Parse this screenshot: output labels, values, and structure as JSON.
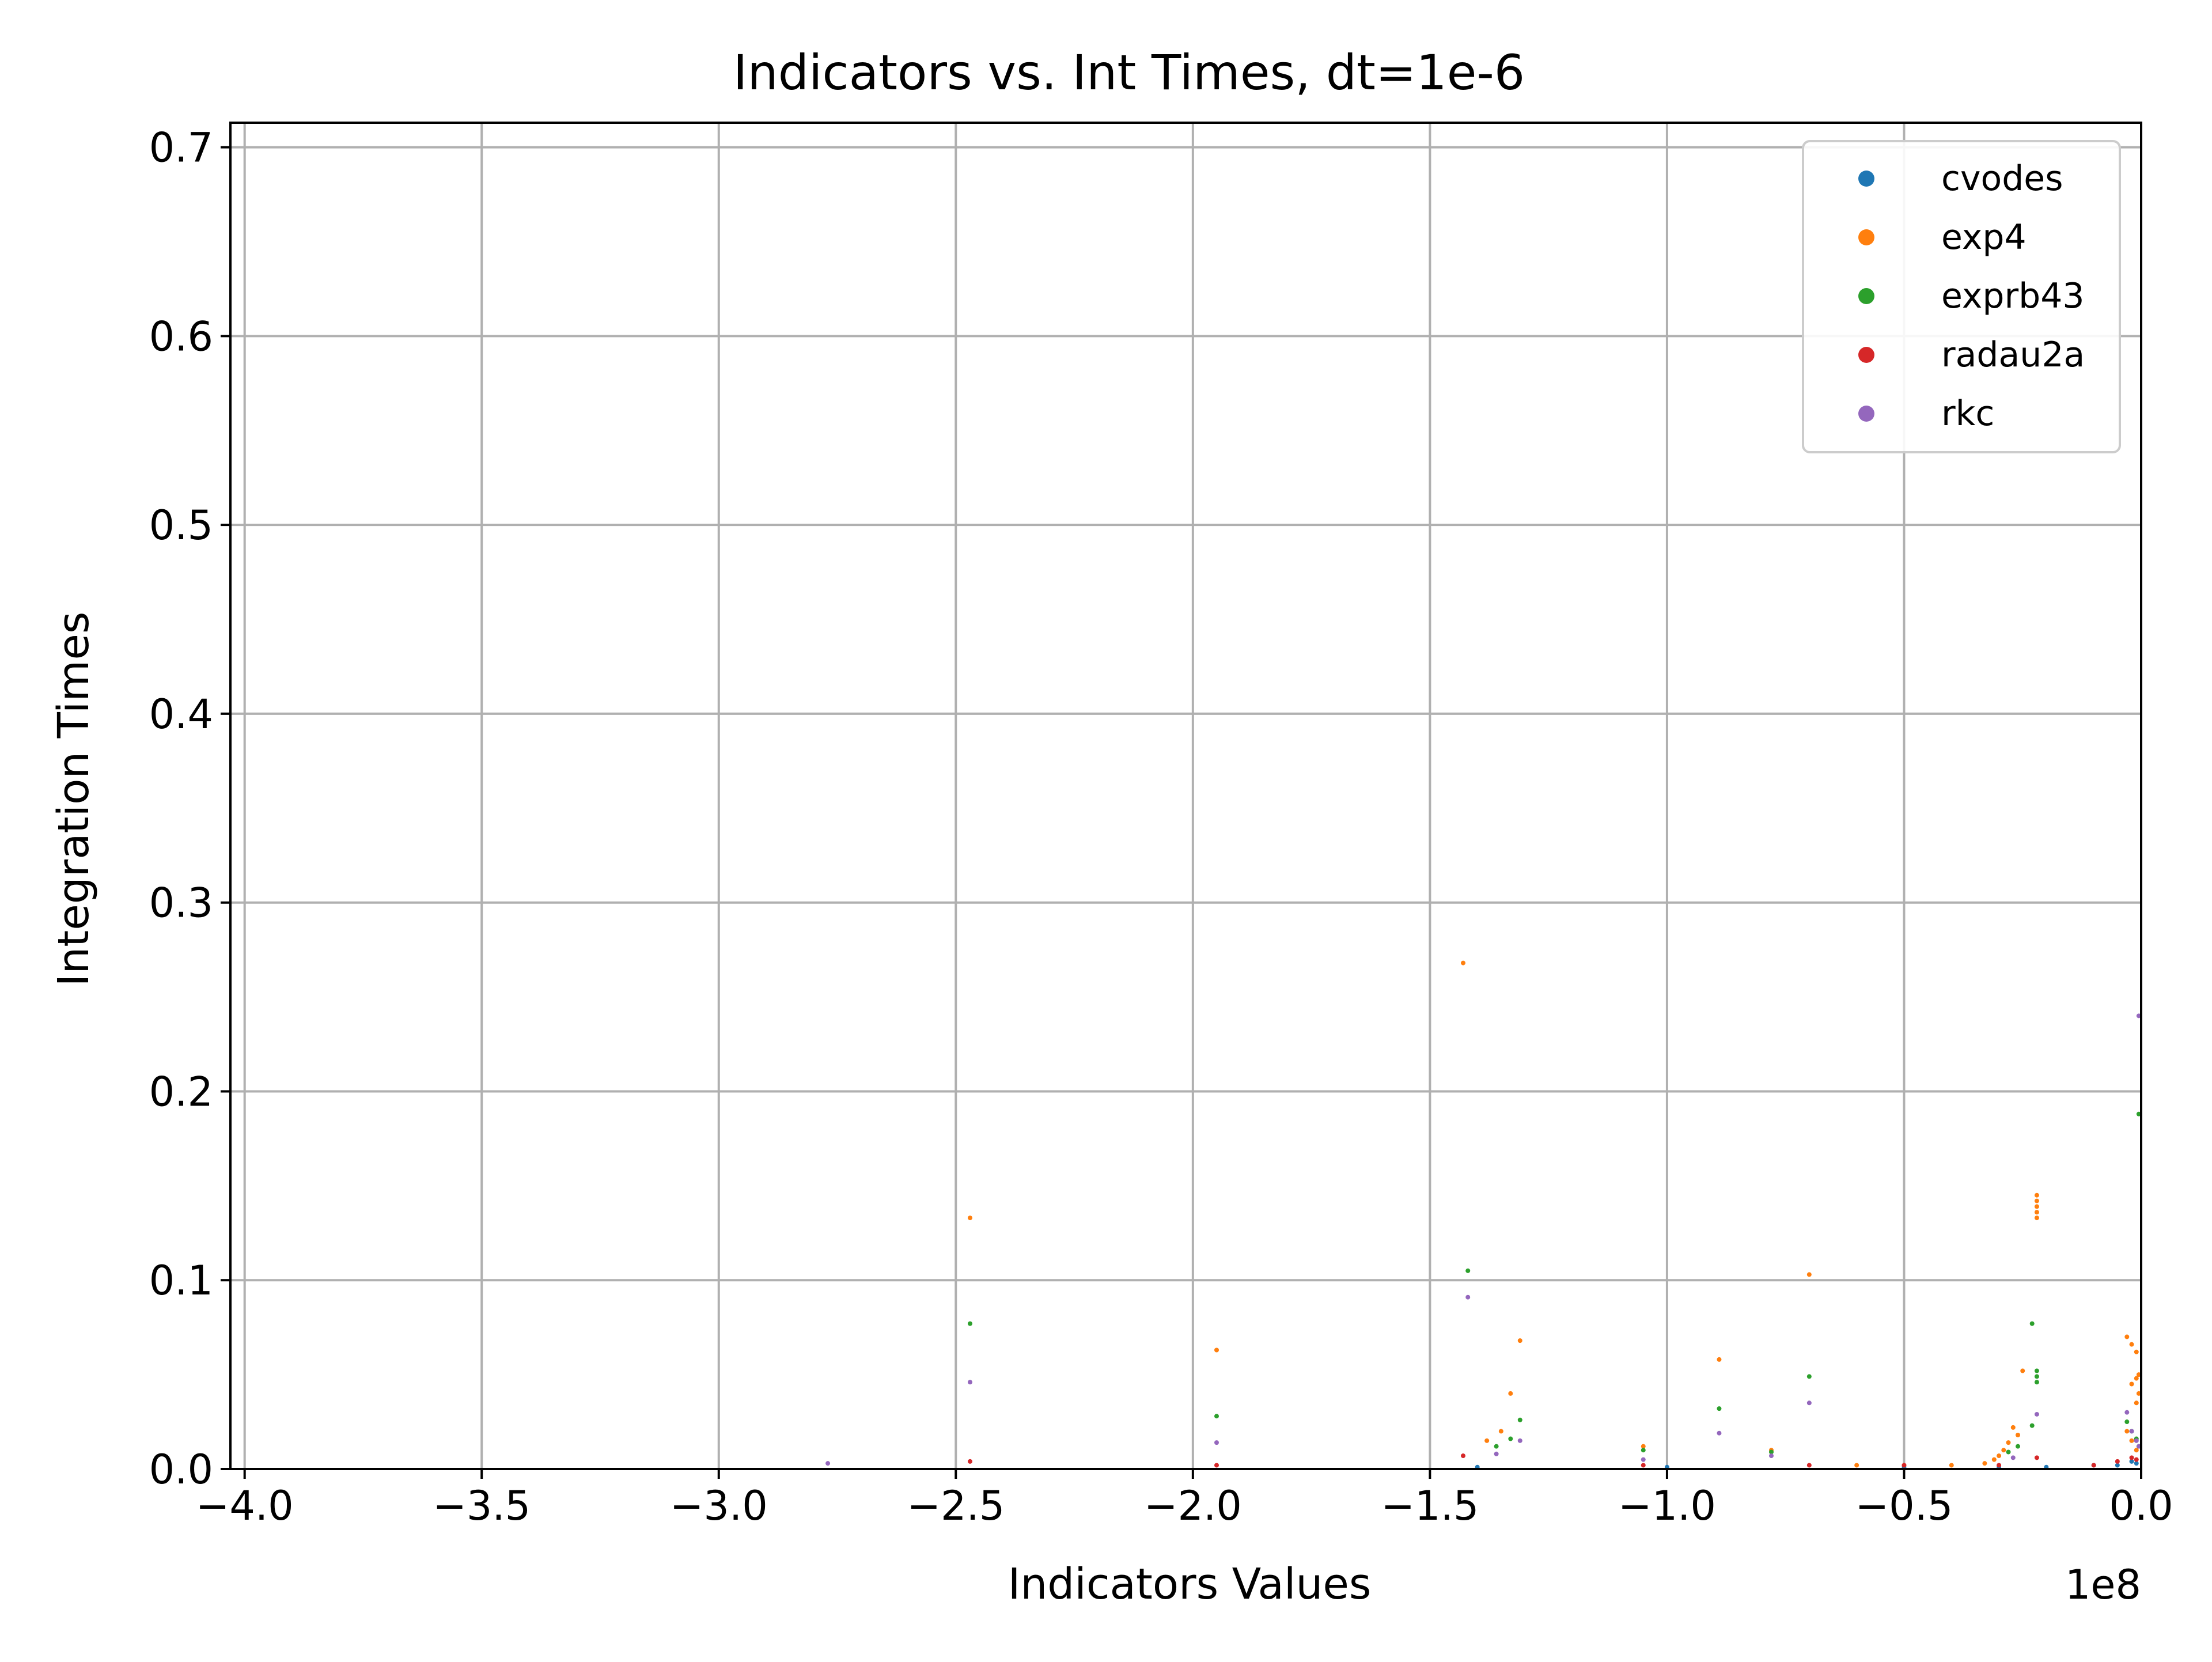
{
  "chart_data": {
    "type": "scatter",
    "title": "Indicators vs. Int Times, dt=1e-6",
    "xlabel": "Indicators Values",
    "ylabel": "Integration Times",
    "x_offset_label": "1e8",
    "xlim": [
      -4.03,
      0.0
    ],
    "ylim": [
      0.0,
      0.713
    ],
    "x_ticks": [
      -4.0,
      -3.5,
      -3.0,
      -2.5,
      -2.0,
      -1.5,
      -1.0,
      -0.5,
      0.0
    ],
    "x_tick_labels": [
      "−4.0",
      "−3.5",
      "−3.0",
      "−2.5",
      "−2.0",
      "−1.5",
      "−1.0",
      "−0.5",
      "0.0"
    ],
    "y_ticks": [
      0.0,
      0.1,
      0.2,
      0.3,
      0.4,
      0.5,
      0.6,
      0.7
    ],
    "y_tick_labels": [
      "0.0",
      "0.1",
      "0.2",
      "0.3",
      "0.4",
      "0.5",
      "0.6",
      "0.7"
    ],
    "grid": true,
    "legend_position": "top-right",
    "series": [
      {
        "name": "cvodes",
        "color": "#1f77b4",
        "points": [
          [
            -0.01,
            0.003
          ],
          [
            -0.02,
            0.004
          ],
          [
            -0.05,
            0.002
          ],
          [
            -0.1,
            0.002
          ],
          [
            -0.2,
            0.001
          ],
          [
            -0.3,
            0.001
          ],
          [
            -0.5,
            0.001
          ],
          [
            -1.0,
            0.001
          ],
          [
            -1.4,
            0.001
          ]
        ]
      },
      {
        "name": "exp4",
        "color": "#ff7f0e",
        "points": [
          [
            -1.43,
            0.268
          ],
          [
            -2.47,
            0.133
          ],
          [
            -1.95,
            0.063
          ],
          [
            -1.31,
            0.068
          ],
          [
            -0.7,
            0.103
          ],
          [
            -0.89,
            0.058
          ],
          [
            -0.25,
            0.052
          ],
          [
            -0.22,
            0.145
          ],
          [
            -0.22,
            0.142
          ],
          [
            -0.22,
            0.139
          ],
          [
            -0.22,
            0.136
          ],
          [
            -0.22,
            0.133
          ],
          [
            -0.03,
            0.07
          ],
          [
            -0.02,
            0.066
          ],
          [
            -0.01,
            0.062
          ],
          [
            -0.005,
            0.05
          ],
          [
            -0.01,
            0.048
          ],
          [
            -0.02,
            0.045
          ],
          [
            -0.005,
            0.04
          ],
          [
            -0.01,
            0.035
          ],
          [
            -0.27,
            0.022
          ],
          [
            -0.26,
            0.018
          ],
          [
            -0.28,
            0.014
          ],
          [
            -0.29,
            0.01
          ],
          [
            -0.3,
            0.007
          ],
          [
            -0.31,
            0.005
          ],
          [
            -0.33,
            0.003
          ],
          [
            -1.35,
            0.02
          ],
          [
            -1.33,
            0.04
          ],
          [
            -1.38,
            0.015
          ],
          [
            -1.05,
            0.012
          ],
          [
            -0.78,
            0.01
          ],
          [
            -0.6,
            0.002
          ],
          [
            -0.5,
            0.002
          ],
          [
            -0.4,
            0.002
          ],
          [
            -0.03,
            0.02
          ],
          [
            -0.02,
            0.015
          ],
          [
            -0.01,
            0.01
          ]
        ]
      },
      {
        "name": "exprb43",
        "color": "#2ca02c",
        "points": [
          [
            -0.005,
            0.188
          ],
          [
            -1.42,
            0.105
          ],
          [
            -2.47,
            0.077
          ],
          [
            -1.95,
            0.028
          ],
          [
            -1.31,
            0.026
          ],
          [
            -0.7,
            0.049
          ],
          [
            -0.89,
            0.032
          ],
          [
            -0.22,
            0.052
          ],
          [
            -0.22,
            0.049
          ],
          [
            -0.22,
            0.046
          ],
          [
            -0.23,
            0.077
          ],
          [
            -0.23,
            0.023
          ],
          [
            -0.03,
            0.025
          ],
          [
            -0.02,
            0.02
          ],
          [
            -0.01,
            0.016
          ],
          [
            -0.005,
            0.012
          ],
          [
            -1.36,
            0.012
          ],
          [
            -1.33,
            0.016
          ],
          [
            -1.05,
            0.01
          ],
          [
            -0.78,
            0.009
          ],
          [
            -0.28,
            0.009
          ],
          [
            -0.26,
            0.012
          ]
        ]
      },
      {
        "name": "radau2a",
        "color": "#d62728",
        "points": [
          [
            -1.43,
            0.007
          ],
          [
            -2.47,
            0.004
          ],
          [
            -1.95,
            0.002
          ],
          [
            -0.22,
            0.006
          ],
          [
            -0.05,
            0.004
          ],
          [
            -0.02,
            0.006
          ],
          [
            -0.01,
            0.005
          ],
          [
            -1.05,
            0.002
          ],
          [
            -0.7,
            0.002
          ],
          [
            -0.5,
            0.002
          ],
          [
            -0.3,
            0.002
          ],
          [
            -0.1,
            0.002
          ]
        ]
      },
      {
        "name": "rkc",
        "color": "#9467bd",
        "points": [
          [
            -0.005,
            0.24
          ],
          [
            -1.42,
            0.091
          ],
          [
            -2.47,
            0.046
          ],
          [
            -1.95,
            0.014
          ],
          [
            -1.31,
            0.015
          ],
          [
            -0.7,
            0.035
          ],
          [
            -0.89,
            0.019
          ],
          [
            -0.22,
            0.029
          ],
          [
            -0.03,
            0.03
          ],
          [
            -0.02,
            0.02
          ],
          [
            -0.01,
            0.015
          ],
          [
            -0.005,
            0.012
          ],
          [
            -2.77,
            0.003
          ],
          [
            -1.36,
            0.008
          ],
          [
            -1.05,
            0.005
          ],
          [
            -0.78,
            0.007
          ],
          [
            -0.27,
            0.006
          ]
        ]
      }
    ]
  }
}
